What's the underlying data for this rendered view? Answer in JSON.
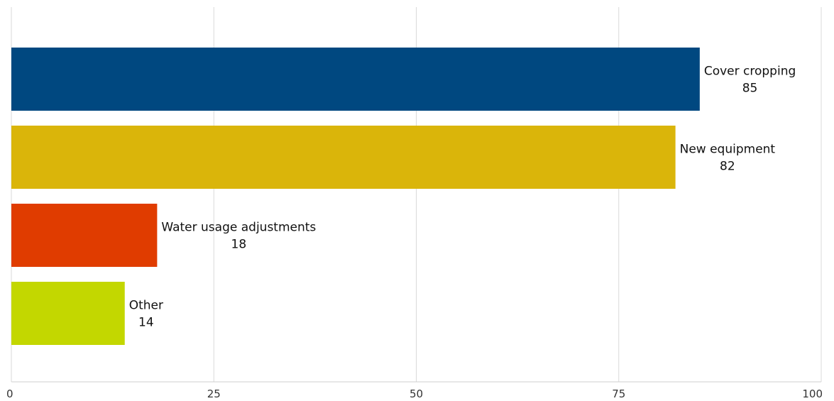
{
  "chart_data": {
    "type": "bar",
    "orientation": "horizontal",
    "categories": [
      "Cover cropping",
      "New equipment",
      "Water usage adjustments",
      "Other"
    ],
    "values": [
      85,
      82,
      18,
      14
    ],
    "colors": [
      "#004880",
      "#dab50a",
      "#e03c00",
      "#c3d700"
    ],
    "xlim": [
      0,
      100
    ],
    "xticks": [
      "0",
      "25",
      "50",
      "75",
      "100"
    ],
    "grid": true,
    "legend": "none",
    "title": "",
    "xlabel": "",
    "ylabel": ""
  }
}
